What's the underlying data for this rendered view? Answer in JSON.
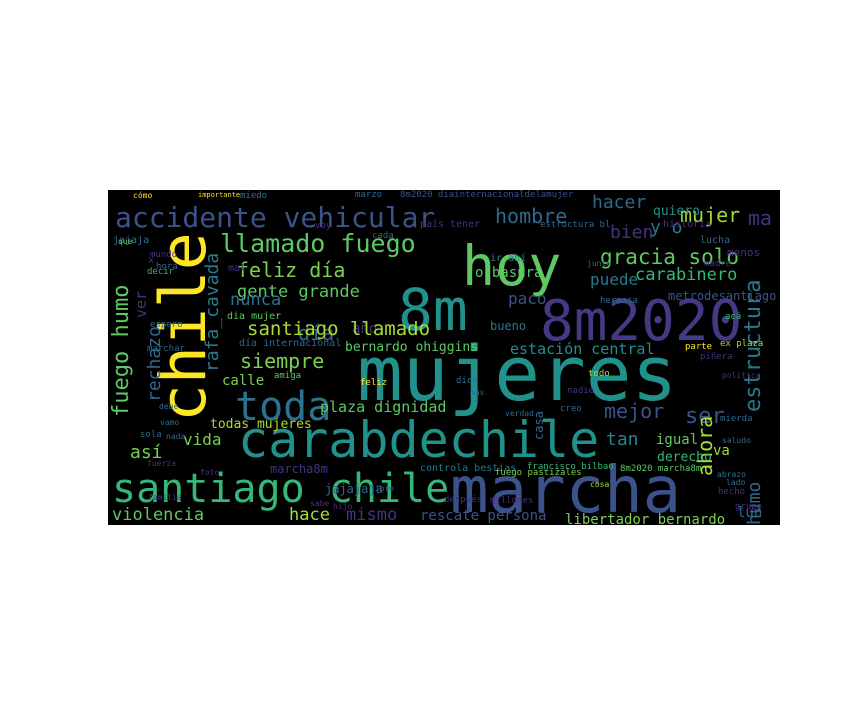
{
  "chart_data": {
    "type": "wordcloud",
    "words": [
      "mujeres",
      "chile",
      "hoy",
      "marcha",
      "8m2020",
      "8m",
      "carabdechile",
      "santiago chile",
      "toda",
      "accidente vehicular",
      "llamado fuego",
      "gracia solo",
      "hombre",
      "hacer",
      "mujer",
      "ma",
      "bien",
      "y o",
      "feliz día",
      "gente grande",
      "día",
      "año",
      "paco",
      "puede",
      "carabinero",
      "nunca",
      "santiago llamado",
      "siempre",
      "rafa_cavada",
      "fuego humo",
      "rechazo",
      "ver",
      "ser",
      "mejor",
      "tan",
      "ahora",
      "humo",
      "estructura",
      "así",
      "vida",
      "violencia",
      "hace",
      "mismo",
      "rescate persona",
      "libertador bernardo",
      "lun",
      "plaza dignidad",
      "estación central",
      "bernardo ohiggins",
      "todas mujeres",
      "calle",
      "o basura",
      "bueno",
      "igual",
      "derecho",
      "va",
      "metrodesantiago",
      "marcha8m",
      "jajajaja",
      "quiero",
      "menos",
      "lucha",
      "historia",
      "8m2020 diainternacionaldelamujer",
      "marzo",
      "miedo",
      "importante",
      "cómo",
      "estructura bl",
      "país tener",
      "jajaja",
      "x",
      "decir",
      "marchar",
      "espero",
      "dice",
      "nadie",
      "todo",
      "creo",
      "mal",
      "voy",
      "cada",
      "ir ahí",
      "sabe",
      "libre",
      "controla bestias",
      "francisco bilbao",
      "8m2020 marcha8m",
      "cosa",
      "hecho",
      "lado",
      "abrazo",
      "saludo",
      "mierda",
      "política",
      "acá",
      "piñera",
      "ex plaza",
      "madre",
      "junto",
      "hermosa",
      "feliz",
      "amiga",
      "foto",
      "familia",
      "sola",
      "vamo",
      "debe",
      "fuerza",
      "mundo",
      "hora",
      "que",
      "nada",
      "parte",
      "grupo",
      "fuego pastizales",
      "día internacional",
      "dia mujer",
      "después",
      "millones",
      "verdad",
      "más",
      "hijo",
      "casa"
    ]
  }
}
